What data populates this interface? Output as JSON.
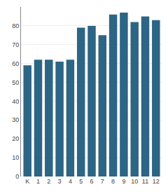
{
  "chart_data": {
    "type": "bar",
    "categories": [
      "K",
      "1",
      "2",
      "3",
      "4",
      "5",
      "6",
      "7",
      "8",
      "9",
      "10",
      "11",
      "12"
    ],
    "values": [
      59,
      62,
      62,
      61,
      62,
      79,
      80,
      75,
      86,
      87,
      82,
      85,
      83
    ],
    "color": "#2d6584",
    "ylim": [
      0,
      90
    ],
    "yticks": [
      0,
      10,
      20,
      30,
      40,
      50,
      60,
      70,
      80
    ],
    "grid": true
  }
}
